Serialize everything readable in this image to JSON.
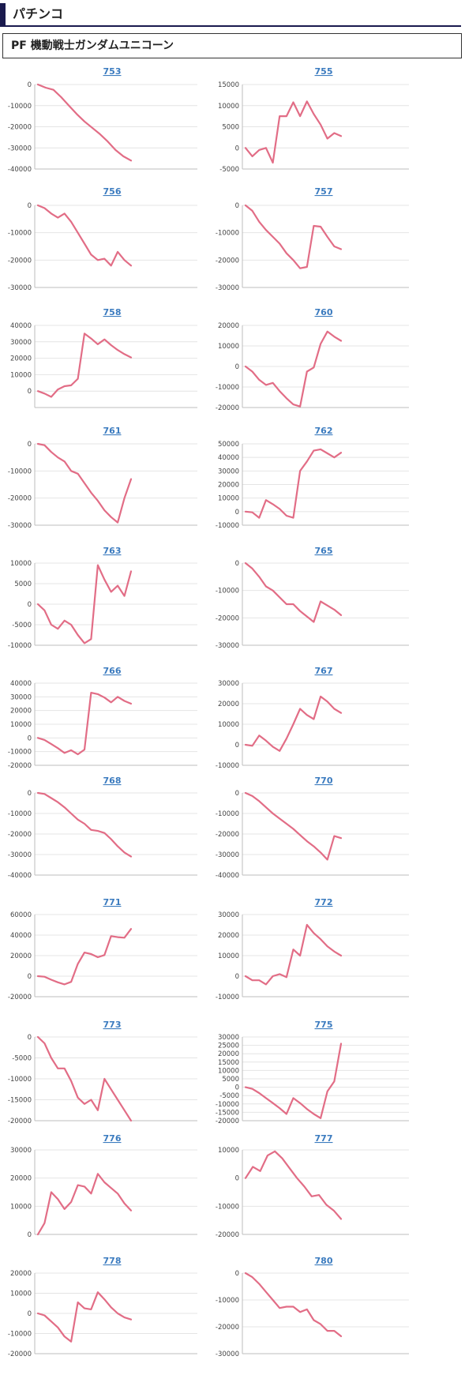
{
  "section": {
    "title": "パチンコ"
  },
  "machine": {
    "name": "PF 機動戦士ガンダムユニコーン"
  },
  "colors": {
    "line": "#e26d86",
    "title_link": "#3b7bbf",
    "header_bar": "#1a1a4e"
  },
  "chart_data": [
    {
      "type": "line",
      "title": "753",
      "yticks": [
        0,
        -10000,
        -20000,
        -30000,
        -40000
      ],
      "ylim": [
        -40000,
        0
      ],
      "values": [
        0,
        -1500,
        -2500,
        -6000,
        -10000,
        -14000,
        -17500,
        -20500,
        -23500,
        -27000,
        -31000,
        -34000,
        -36000
      ]
    },
    {
      "type": "line",
      "title": "755",
      "yticks": [
        15000,
        10000,
        5000,
        0,
        -5000
      ],
      "ylim": [
        -5000,
        15000
      ],
      "values": [
        0,
        -2000,
        -500,
        0,
        -3500,
        7500,
        7500,
        10800,
        7500,
        11000,
        8000,
        5500,
        2200,
        3500,
        2800
      ]
    },
    {
      "type": "line",
      "title": "756",
      "yticks": [
        0,
        -10000,
        -20000,
        -30000
      ],
      "ylim": [
        -30000,
        0
      ],
      "values": [
        0,
        -1000,
        -3000,
        -4500,
        -3000,
        -6000,
        -10000,
        -14000,
        -18000,
        -20000,
        -19500,
        -22000,
        -17000,
        -20000,
        -22000
      ]
    },
    {
      "type": "line",
      "title": "757",
      "yticks": [
        0,
        -10000,
        -20000,
        -30000
      ],
      "ylim": [
        -30000,
        0
      ],
      "values": [
        0,
        -2000,
        -6000,
        -9000,
        -11500,
        -14000,
        -17500,
        -20000,
        -23000,
        -22500,
        -7500,
        -7800,
        -11500,
        -15000,
        -16000
      ]
    },
    {
      "type": "line",
      "title": "758",
      "yticks": [
        40000,
        30000,
        20000,
        10000,
        0
      ],
      "ylim": [
        -10000,
        40000
      ],
      "values": [
        0,
        -1500,
        -3500,
        1000,
        3000,
        3500,
        7500,
        35000,
        32000,
        28500,
        31500,
        28000,
        25000,
        22500,
        20500
      ]
    },
    {
      "type": "line",
      "title": "760",
      "yticks": [
        20000,
        10000,
        0,
        -10000,
        -20000
      ],
      "ylim": [
        -20000,
        20000
      ],
      "values": [
        0,
        -2500,
        -6500,
        -9000,
        -8000,
        -12000,
        -15500,
        -18500,
        -19500,
        -2500,
        -500,
        11000,
        17000,
        14500,
        12500
      ]
    },
    {
      "type": "line",
      "title": "761",
      "yticks": [
        0,
        -10000,
        -20000,
        -30000
      ],
      "ylim": [
        -30000,
        0
      ],
      "values": [
        0,
        -500,
        -3000,
        -5000,
        -6500,
        -10000,
        -11000,
        -14500,
        -18000,
        -21000,
        -24500,
        -27000,
        -29000,
        -20000,
        -13000
      ]
    },
    {
      "type": "line",
      "title": "762",
      "yticks": [
        50000,
        40000,
        30000,
        20000,
        10000,
        0,
        -10000
      ],
      "ylim": [
        -10000,
        50000
      ],
      "values": [
        0,
        -500,
        -4500,
        8500,
        5500,
        2000,
        -3000,
        -4500,
        30000,
        37000,
        45000,
        46000,
        43000,
        40000,
        43500
      ]
    },
    {
      "type": "line",
      "title": "763",
      "yticks": [
        10000,
        5000,
        0,
        -5000,
        -10000
      ],
      "ylim": [
        -10000,
        10000
      ],
      "values": [
        0,
        -1500,
        -5000,
        -6000,
        -4000,
        -5000,
        -7500,
        -9500,
        -8500,
        9500,
        6000,
        3000,
        4500,
        2000,
        8000
      ]
    },
    {
      "type": "line",
      "title": "765",
      "yticks": [
        0,
        -10000,
        -20000,
        -30000
      ],
      "ylim": [
        -30000,
        0
      ],
      "values": [
        0,
        -2000,
        -5000,
        -8500,
        -10000,
        -12500,
        -15000,
        -15000,
        -17500,
        -19500,
        -21500,
        -14000,
        -15500,
        -17000,
        -19000
      ]
    },
    {
      "type": "line",
      "title": "766",
      "yticks": [
        40000,
        30000,
        20000,
        10000,
        0,
        -10000,
        -20000
      ],
      "ylim": [
        -20000,
        40000
      ],
      "values": [
        0,
        -1500,
        -4500,
        -7500,
        -11000,
        -9000,
        -12000,
        -8500,
        33000,
        32000,
        29500,
        26000,
        30000,
        27000,
        25000
      ]
    },
    {
      "type": "line",
      "title": "767",
      "yticks": [
        30000,
        20000,
        10000,
        0,
        -10000
      ],
      "ylim": [
        -10000,
        30000
      ],
      "values": [
        0,
        -500,
        4500,
        2000,
        -1000,
        -3000,
        3000,
        10000,
        17500,
        14500,
        12500,
        23500,
        21000,
        17500,
        15500
      ]
    },
    {
      "type": "line",
      "title": "768",
      "yticks": [
        0,
        -10000,
        -20000,
        -30000,
        -40000
      ],
      "ylim": [
        -40000,
        0
      ],
      "values": [
        0,
        -500,
        -2500,
        -4500,
        -7000,
        -10000,
        -13000,
        -15000,
        -18000,
        -18500,
        -19500,
        -22500,
        -26000,
        -29000,
        -31000
      ]
    },
    {
      "type": "line",
      "title": "770",
      "yticks": [
        0,
        -10000,
        -20000,
        -30000,
        -40000
      ],
      "ylim": [
        -40000,
        0
      ],
      "values": [
        0,
        -1500,
        -4000,
        -7000,
        -10000,
        -12500,
        -15000,
        -17500,
        -20500,
        -23500,
        -26000,
        -29000,
        -32500,
        -21000,
        -22000
      ]
    },
    {
      "type": "line",
      "title": "771",
      "yticks": [
        60000,
        40000,
        20000,
        0,
        -20000
      ],
      "ylim": [
        -20000,
        60000
      ],
      "values": [
        0,
        -500,
        -3500,
        -6000,
        -8000,
        -5500,
        12000,
        23000,
        21500,
        18500,
        20500,
        39000,
        38000,
        37500,
        46000
      ]
    },
    {
      "type": "line",
      "title": "772",
      "yticks": [
        30000,
        20000,
        10000,
        0,
        -10000
      ],
      "ylim": [
        -10000,
        30000
      ],
      "values": [
        0,
        -2000,
        -2000,
        -4000,
        0,
        1000,
        -500,
        13000,
        10000,
        25000,
        21000,
        18000,
        14500,
        12000,
        10000
      ]
    },
    {
      "type": "line",
      "title": "773",
      "yticks": [
        0,
        -5000,
        -10000,
        -15000,
        -20000
      ],
      "ylim": [
        -20000,
        0
      ],
      "values": [
        0,
        -1500,
        -5000,
        -7500,
        -7500,
        -10500,
        -14500,
        -16000,
        -15000,
        -17500,
        -10000,
        -12500,
        -15000,
        -17500,
        -20000
      ]
    },
    {
      "type": "line",
      "title": "775",
      "yticks": [
        30000,
        25000,
        20000,
        15000,
        10000,
        5000,
        0,
        -5000,
        -10000,
        -15000,
        -20000
      ],
      "ylim": [
        -20000,
        30000
      ],
      "values": [
        0,
        -1000,
        -3500,
        -6500,
        -9500,
        -12500,
        -16000,
        -6500,
        -9500,
        -13000,
        -16000,
        -18500,
        -2500,
        3500,
        26000
      ]
    },
    {
      "type": "line",
      "title": "776",
      "yticks": [
        30000,
        20000,
        10000,
        0
      ],
      "ylim": [
        0,
        30000
      ],
      "values": [
        0,
        4000,
        15000,
        12500,
        9000,
        11500,
        17500,
        17000,
        14500,
        21500,
        18500,
        16500,
        14500,
        11000,
        8500
      ]
    },
    {
      "type": "line",
      "title": "777",
      "yticks": [
        10000,
        0,
        -10000,
        -20000
      ],
      "ylim": [
        -20000,
        10000
      ],
      "values": [
        0,
        4000,
        2500,
        8000,
        9500,
        7000,
        3500,
        0,
        -3000,
        -6500,
        -6000,
        -9500,
        -11500,
        -14500
      ]
    },
    {
      "type": "line",
      "title": "778",
      "yticks": [
        20000,
        10000,
        0,
        -10000,
        -20000
      ],
      "ylim": [
        -20000,
        20000
      ],
      "values": [
        0,
        -1000,
        -4000,
        -7000,
        -11500,
        -14000,
        5500,
        2500,
        2000,
        10500,
        7000,
        3000,
        0,
        -2000,
        -3000
      ]
    },
    {
      "type": "line",
      "title": "780",
      "yticks": [
        0,
        -10000,
        -20000,
        -30000
      ],
      "ylim": [
        -30000,
        0
      ],
      "values": [
        0,
        -1500,
        -4000,
        -7000,
        -10000,
        -13000,
        -12500,
        -12500,
        -14500,
        -13500,
        -17500,
        -19000,
        -21500,
        -21500,
        -23500
      ]
    }
  ]
}
